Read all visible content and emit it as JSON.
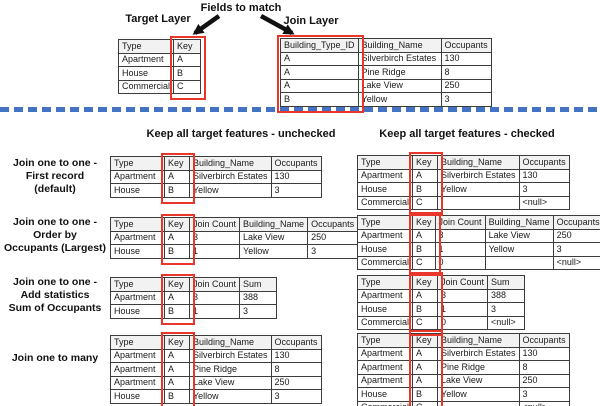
{
  "colors": {
    "key_highlight_red": "#e8362b",
    "divider_blue": "#4472c4",
    "table_header_bg": "#f2f2f2"
  },
  "top": {
    "target_layer_label": "Target Layer",
    "fields_to_match_label": "Fields to match",
    "join_layer_label": "Join Layer",
    "target_table": {
      "headers": [
        "Type",
        "Key"
      ],
      "rows": [
        [
          "Apartment",
          "A"
        ],
        [
          "House",
          "B"
        ],
        [
          "Commercial",
          "C"
        ]
      ]
    },
    "join_table": {
      "headers": [
        "Building_Type_ID",
        "Building_Name",
        "Occupants"
      ],
      "rows": [
        [
          "A",
          "Silverbirch Estates",
          "130"
        ],
        [
          "A",
          "Pine Ridge",
          "8"
        ],
        [
          "A",
          "Lake View",
          "250"
        ],
        [
          "B",
          "Yellow",
          "3"
        ]
      ]
    }
  },
  "columns": {
    "unchecked_header": "Keep all target features - unchecked",
    "checked_header": "Keep all target features - checked"
  },
  "join_examples": [
    {
      "label_lines": [
        "Join one to one -",
        "First record",
        "(default)"
      ],
      "unchecked": {
        "headers": [
          "Type",
          "Key",
          "Building_Name",
          "Occupants"
        ],
        "rows": [
          [
            "Apartment",
            "A",
            "Silverbirch Estates",
            "130"
          ],
          [
            "House",
            "B",
            "Yellow",
            "3"
          ]
        ]
      },
      "checked": {
        "headers": [
          "Type",
          "Key",
          "Building_Name",
          "Occupants"
        ],
        "rows": [
          [
            "Apartment",
            "A",
            "Silverbirch Estates",
            "130"
          ],
          [
            "House",
            "B",
            "Yellow",
            "3"
          ],
          [
            "Commercial",
            "C",
            "",
            "<null>"
          ]
        ]
      }
    },
    {
      "label_lines": [
        "Join one to one -",
        "Order by",
        "Occupants (Largest)"
      ],
      "unchecked": {
        "headers": [
          "Type",
          "Key",
          "Join Count",
          "Building_Name",
          "Occupants"
        ],
        "rows": [
          [
            "Apartment",
            "A",
            "3",
            "Lake View",
            "250"
          ],
          [
            "House",
            "B",
            "1",
            "Yellow",
            "3"
          ]
        ]
      },
      "checked": {
        "headers": [
          "Type",
          "Key",
          "Join Count",
          "Building_Name",
          "Occupants"
        ],
        "rows": [
          [
            "Apartment",
            "A",
            "3",
            "Lake View",
            "250"
          ],
          [
            "House",
            "B",
            "1",
            "Yellow",
            "3"
          ],
          [
            "Commercial",
            "C",
            "0",
            "",
            "<null>"
          ]
        ]
      }
    },
    {
      "label_lines": [
        "Join one to one -",
        "Add statistics",
        "Sum of Occupants"
      ],
      "unchecked": {
        "headers": [
          "Type",
          "Key",
          "Join Count",
          "Sum"
        ],
        "rows": [
          [
            "Apartment",
            "A",
            "3",
            "388"
          ],
          [
            "House",
            "B",
            "1",
            "3"
          ]
        ]
      },
      "checked": {
        "headers": [
          "Type",
          "Key",
          "Join Count",
          "Sum"
        ],
        "rows": [
          [
            "Apartment",
            "A",
            "3",
            "388"
          ],
          [
            "House",
            "B",
            "1",
            "3"
          ],
          [
            "Commercial",
            "C",
            "0",
            "<null>"
          ]
        ]
      }
    },
    {
      "label_lines": [
        "Join one to many"
      ],
      "unchecked": {
        "headers": [
          "Type",
          "Key",
          "Building_Name",
          "Occupants"
        ],
        "rows": [
          [
            "Apartment",
            "A",
            "Silverbirch Estates",
            "130"
          ],
          [
            "Apartment",
            "A",
            "Pine Ridge",
            "8"
          ],
          [
            "Apartment",
            "A",
            "Lake View",
            "250"
          ],
          [
            "House",
            "B",
            "Yellow",
            "3"
          ]
        ]
      },
      "checked": {
        "headers": [
          "Type",
          "Key",
          "Building_Name",
          "Occupants"
        ],
        "rows": [
          [
            "Apartment",
            "A",
            "Silverbirch Estates",
            "130"
          ],
          [
            "Apartment",
            "A",
            "Pine Ridge",
            "8"
          ],
          [
            "Apartment",
            "A",
            "Lake View",
            "250"
          ],
          [
            "House",
            "B",
            "Yellow",
            "3"
          ],
          [
            "Commercial",
            "C",
            "",
            "<null>"
          ]
        ]
      }
    }
  ]
}
